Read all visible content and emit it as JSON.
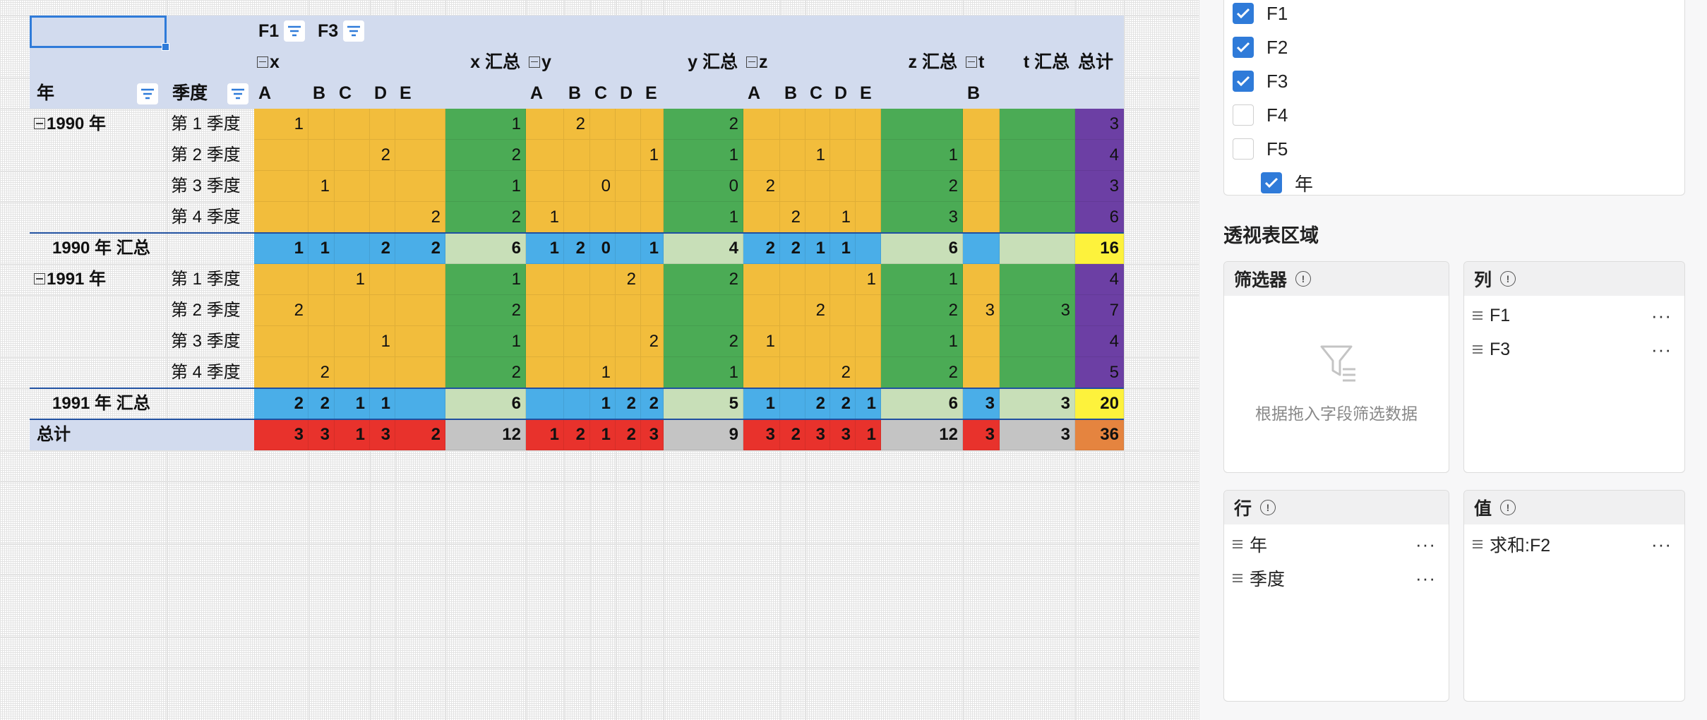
{
  "pivot": {
    "filter_fields": [
      "F1",
      "F3"
    ],
    "col_groups": [
      {
        "label": "x",
        "subtotal_label": "x 汇总",
        "items": [
          "A",
          "B",
          "C",
          "D",
          "E"
        ]
      },
      {
        "label": "y",
        "subtotal_label": "y 汇总",
        "items": [
          "A",
          "B",
          "C",
          "D",
          "E"
        ]
      },
      {
        "label": "z",
        "subtotal_label": "z 汇总",
        "items": [
          "A",
          "B",
          "C",
          "D",
          "E"
        ]
      },
      {
        "label": "t",
        "subtotal_label": "t 汇总",
        "items": [
          "B"
        ]
      }
    ],
    "grand_total_label": "总计",
    "row_header_1": "年",
    "row_header_2": "季度",
    "rows": [
      {
        "year": "1990 年",
        "q": "第 1 季度",
        "vals": [
          "1",
          "",
          "",
          "",
          "",
          "1",
          "",
          "2",
          "",
          "",
          "",
          "2",
          "",
          "",
          "",
          "",
          "",
          "",
          "",
          "",
          "3"
        ],
        "kind": "data",
        "showYear": true
      },
      {
        "year": "",
        "q": "第 2 季度",
        "vals": [
          "",
          "",
          "",
          "2",
          "",
          "2",
          "",
          "",
          "",
          "",
          "1",
          "1",
          "",
          "",
          "1",
          "",
          "",
          "1",
          "",
          "",
          "4"
        ],
        "kind": "data"
      },
      {
        "year": "",
        "q": "第 3 季度",
        "vals": [
          "",
          "1",
          "",
          "",
          "",
          "1",
          "",
          "",
          "0",
          "",
          "",
          "0",
          "2",
          "",
          "",
          "",
          "",
          "2",
          "",
          "",
          "3"
        ],
        "kind": "data"
      },
      {
        "year": "",
        "q": "第 4 季度",
        "vals": [
          "",
          "",
          "",
          "",
          "2",
          "2",
          "1",
          "",
          "",
          "",
          "",
          "1",
          "",
          "2",
          "",
          "1",
          "",
          "3",
          "",
          "",
          "6"
        ],
        "kind": "data"
      },
      {
        "label": "1990 年 汇总",
        "vals": [
          "1",
          "1",
          "",
          "2",
          "2",
          "6",
          "1",
          "2",
          "0",
          "",
          "1",
          "4",
          "2",
          "2",
          "1",
          "1",
          "",
          "6",
          "",
          "",
          "16"
        ],
        "kind": "subtotal"
      },
      {
        "year": "1991 年",
        "q": "第 1 季度",
        "vals": [
          "",
          "",
          "1",
          "",
          "",
          "1",
          "",
          "",
          "",
          "2",
          "",
          "2",
          "",
          "",
          "",
          "",
          "1",
          "1",
          "",
          "",
          "4"
        ],
        "kind": "data",
        "showYear": true
      },
      {
        "year": "",
        "q": "第 2 季度",
        "vals": [
          "2",
          "",
          "",
          "",
          "",
          "2",
          "",
          "",
          "",
          "",
          "",
          "",
          "",
          "",
          "2",
          "",
          "",
          "2",
          "3",
          "3",
          "7"
        ],
        "kind": "data"
      },
      {
        "year": "",
        "q": "第 3 季度",
        "vals": [
          "",
          "",
          "",
          "1",
          "",
          "1",
          "",
          "",
          "",
          "",
          "2",
          "2",
          "1",
          "",
          "",
          "",
          "",
          "1",
          "",
          "",
          "4"
        ],
        "kind": "data"
      },
      {
        "year": "",
        "q": "第 4 季度",
        "vals": [
          "",
          "2",
          "",
          "",
          "",
          "2",
          "",
          "",
          "1",
          "",
          "",
          "1",
          "",
          "",
          "",
          "2",
          "",
          "2",
          "",
          "",
          "5"
        ],
        "kind": "data"
      },
      {
        "label": "1991 年 汇总",
        "vals": [
          "2",
          "2",
          "1",
          "1",
          "",
          "6",
          "",
          "",
          "1",
          "2",
          "2",
          "5",
          "1",
          "",
          "2",
          "2",
          "1",
          "6",
          "3",
          "3",
          "20"
        ],
        "kind": "subtotal"
      },
      {
        "label": "总计",
        "vals": [
          "3",
          "3",
          "1",
          "3",
          "2",
          "12",
          "1",
          "2",
          "1",
          "2",
          "3",
          "9",
          "3",
          "2",
          "3",
          "3",
          "1",
          "12",
          "3",
          "3",
          "36"
        ],
        "kind": "total"
      }
    ]
  },
  "field_list": {
    "items": [
      {
        "label": "F1",
        "checked": true
      },
      {
        "label": "F2",
        "checked": true
      },
      {
        "label": "F3",
        "checked": true
      },
      {
        "label": "F4",
        "checked": false
      },
      {
        "label": "F5",
        "checked": false
      },
      {
        "label": "年",
        "checked": true,
        "indent": true
      }
    ]
  },
  "areas": {
    "title": "透视表区域",
    "filter": {
      "title": "筛选器",
      "hint": "根据拖入字段筛选数据",
      "items": []
    },
    "columns": {
      "title": "列",
      "items": [
        "F1",
        "F3"
      ]
    },
    "rows": {
      "title": "行",
      "items": [
        "年",
        "季度"
      ]
    },
    "values": {
      "title": "值",
      "items": [
        "求和:F2"
      ]
    },
    "more_label": "···"
  },
  "colors": {
    "header_bg": "#d2dbee",
    "data_orange": "#f2bd3c",
    "data_green": "#4bab55",
    "subtotal_blue": "#4aaee8",
    "subtotal_lightgreen": "#c8dfb8",
    "grand_purple": "#6c3fa4",
    "grand_yellow": "#fdf23c",
    "total_red": "#e8322c",
    "total_gray": "#c4c4c4",
    "total_orange": "#e5843f",
    "accent_blue": "#2f7bd9"
  }
}
